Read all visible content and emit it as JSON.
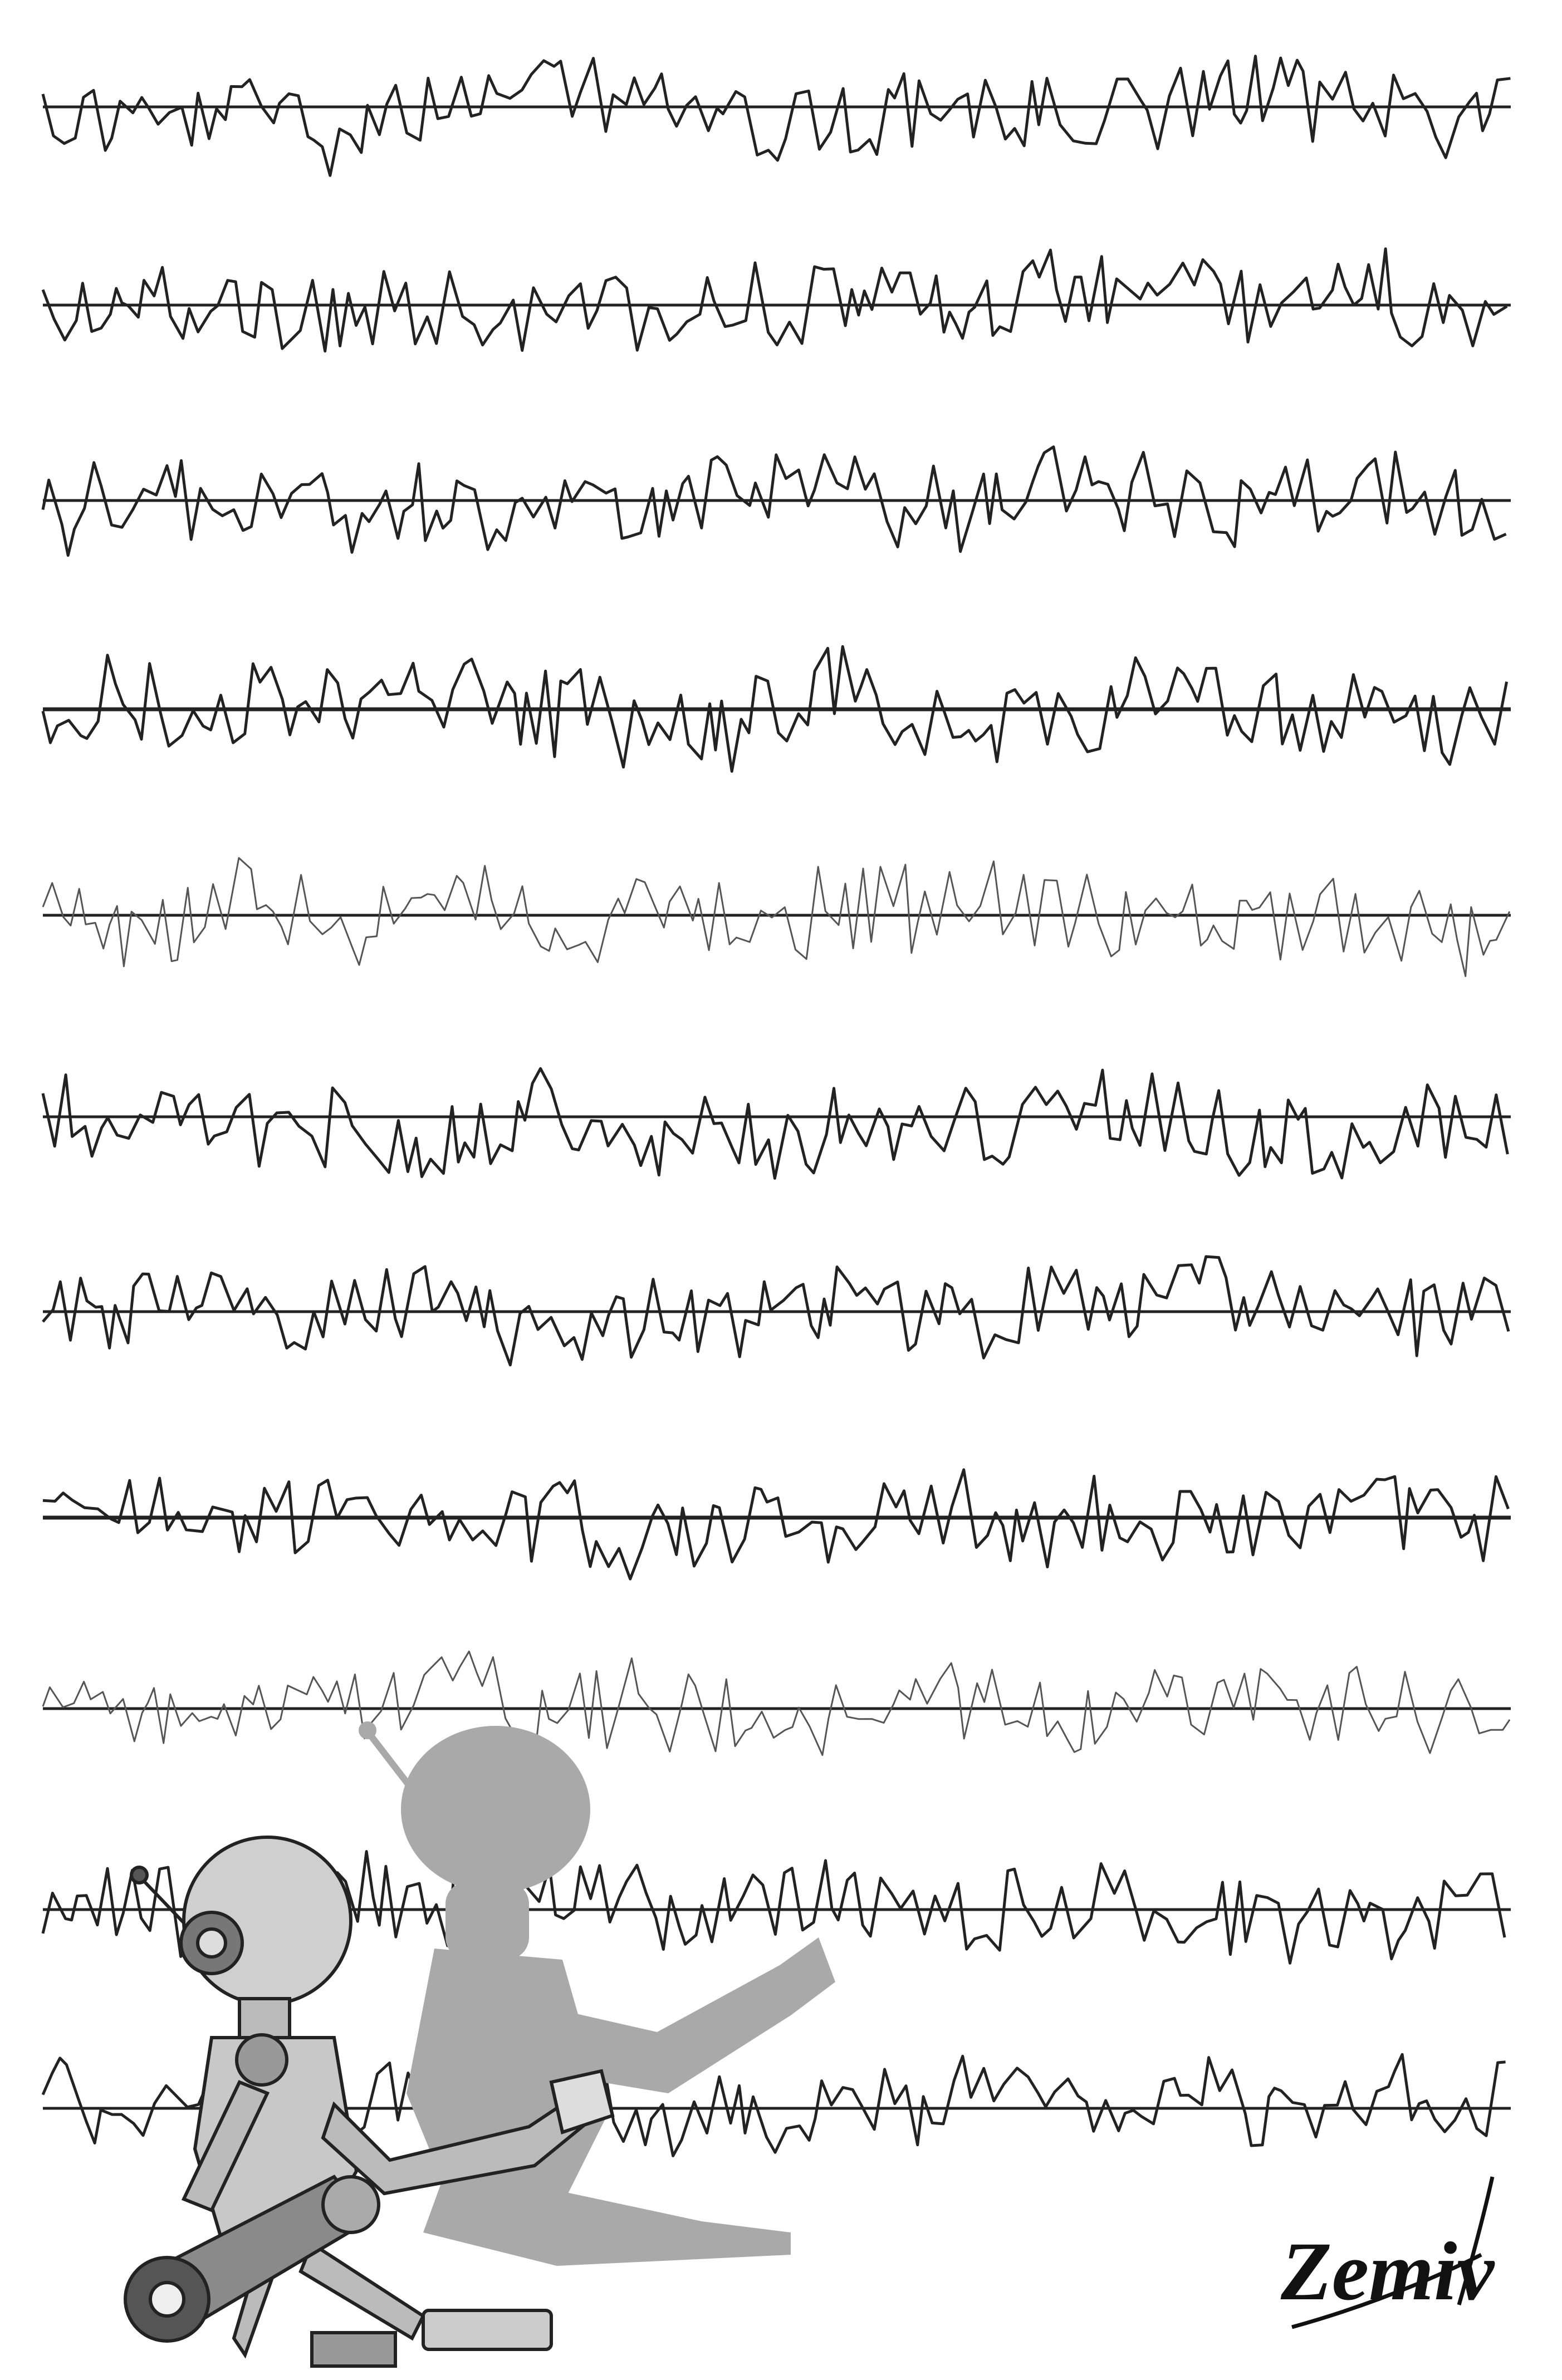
{
  "signature": "Zemiv"
}
